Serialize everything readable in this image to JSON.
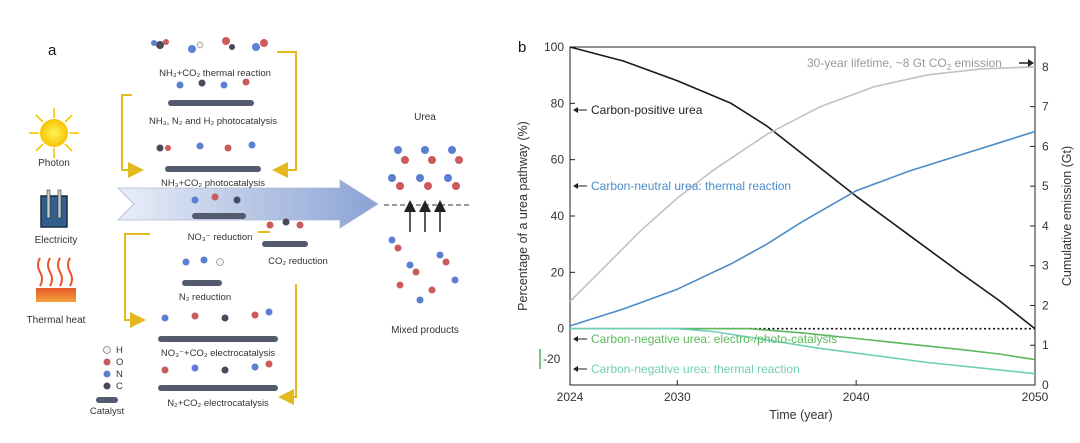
{
  "panel_a": {
    "label": "a",
    "sources": [
      "Photon",
      "Electricity",
      "Thermal heat"
    ],
    "routes": [
      "NH₃+CO₂ thermal reaction",
      "NH₃, N₂ and H₂ photocatalysis",
      "NH₃+CO₂ photocatalysis",
      "NO₃⁻ reduction",
      "CO₂ reduction",
      "N₂ reduction",
      "NO₃⁻+CO₂ electrocatalysis",
      "N₂+CO₂ electrocatalysis"
    ],
    "product_top": "Urea",
    "product_bottom": "Mixed products",
    "legend": [
      "H",
      "O",
      "N",
      "C",
      "Catalyst"
    ],
    "colors": {
      "H": "#f2f2f2",
      "O": "#cc5a5a",
      "N": "#5b7fd1",
      "C": "#4a4a5a",
      "catalyst": "#545a6e",
      "route_arrow": "#e3b81d",
      "flow_arrow": "#9fb3dc"
    }
  },
  "panel_b": {
    "label": "b",
    "annotations": {
      "lifetime_prefix": "30-year lifetime, ~8  Gt CO",
      "lifetime_sub": "2",
      "lifetime_suffix": " emission",
      "carbon_positive": "Carbon-positive urea",
      "carbon_neutral": "Carbon-neutral urea: thermal reaction",
      "carbon_negative_electro": "Carbon-negative urea: electro-/photo-catalysis",
      "carbon_negative_thermal": "Carbon-negative urea: thermal reaction",
      "minus20": "-20"
    },
    "colors": {
      "carbon_positive": "#1a1a1a",
      "carbon_neutral": "#4a8cc9",
      "cumulative_emission": "#c2c2c2",
      "electro_photo": "#5cb85c",
      "thermal_negative": "#6fcfb7",
      "zero_line": "#111111"
    }
  },
  "chart_data": {
    "type": "line",
    "xlabel": "Time (year)",
    "ylabel": "Percentage of a urea pathway (%)",
    "y2label": "Cumulative emission (Gt)",
    "xlim": [
      2024,
      2050
    ],
    "ylim": [
      -20,
      100
    ],
    "y2lim": [
      0,
      8.5
    ],
    "xticks": [
      2024,
      2030,
      2040,
      2050
    ],
    "yticks": [
      0,
      20,
      40,
      60,
      80,
      100
    ],
    "y2ticks": [
      0,
      1,
      2,
      3,
      4,
      5,
      6,
      7,
      8
    ],
    "grid": false,
    "zero_line_style": "dotted",
    "series": [
      {
        "axis": "left",
        "color_key": "carbon_positive",
        "x": [
          2024,
          2027,
          2030,
          2033,
          2035,
          2037,
          2040,
          2043,
          2046,
          2048,
          2049,
          2050
        ],
        "y": [
          100,
          95,
          88,
          80,
          72,
          62,
          47,
          33,
          19,
          10,
          5,
          0
        ]
      },
      {
        "axis": "left",
        "color_key": "carbon_neutral",
        "x": [
          2024,
          2027,
          2030,
          2033,
          2035,
          2037,
          2040,
          2043,
          2046,
          2048,
          2050
        ],
        "y": [
          1,
          7,
          14,
          23,
          30,
          38,
          49,
          56,
          62,
          66,
          70
        ]
      },
      {
        "axis": "right",
        "color_key": "cumulative_emission",
        "x": [
          2024,
          2026,
          2028,
          2030,
          2032,
          2035,
          2038,
          2041,
          2044,
          2047,
          2050
        ],
        "y": [
          2.1,
          3.0,
          3.9,
          4.7,
          5.4,
          6.3,
          7.0,
          7.5,
          7.8,
          7.95,
          8.0
        ]
      },
      {
        "axis": "left",
        "color_key": "electro_photo",
        "x": [
          2024,
          2030,
          2034,
          2037,
          2040,
          2043,
          2046,
          2048,
          2050
        ],
        "y": [
          0,
          0,
          0,
          -1.5,
          -3.5,
          -5.5,
          -7.5,
          -9,
          -11
        ]
      },
      {
        "axis": "left",
        "color_key": "thermal_negative",
        "x": [
          2024,
          2030,
          2032,
          2035,
          2038,
          2041,
          2044,
          2047,
          2050
        ],
        "y": [
          0,
          0,
          -1,
          -4,
          -7,
          -9.5,
          -12,
          -14,
          -16
        ]
      }
    ]
  }
}
